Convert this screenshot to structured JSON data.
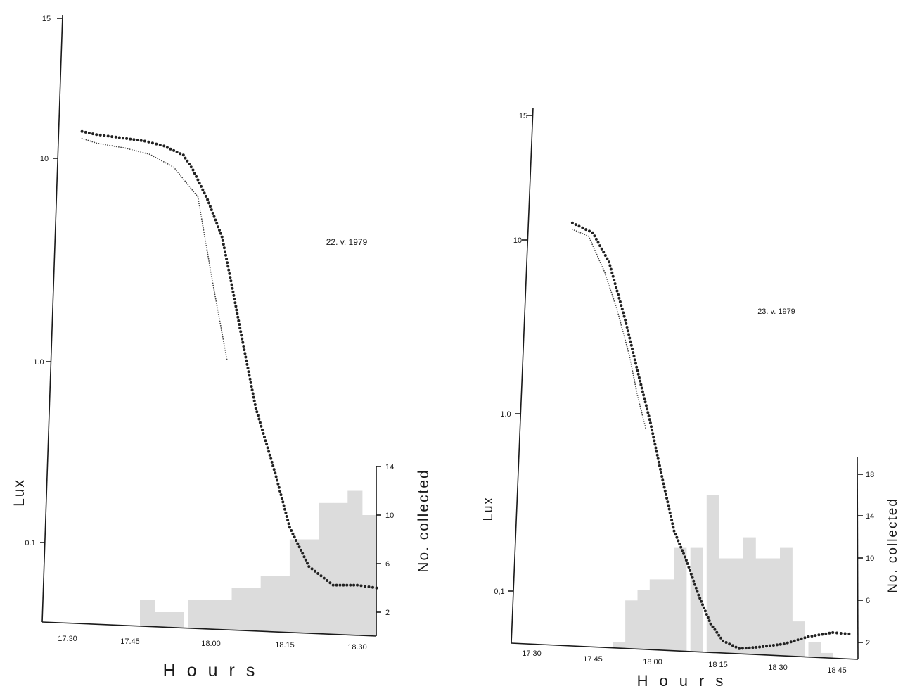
{
  "chart_data": [
    {
      "type": "line",
      "annotation": "22. v. 1979",
      "xlabel": "Hours",
      "ylabel": "Lux",
      "y2label": "No. collected",
      "x_ticks": [
        "17.30",
        "17.45",
        "18.00",
        "18.15",
        "18.30"
      ],
      "y_ticks": [
        "15",
        "10",
        "1.0",
        "0.1"
      ],
      "y2_ticks": [
        "2",
        "6",
        "10",
        "14"
      ],
      "y_scale": "log",
      "xlim": [
        "17:30",
        "18:35"
      ],
      "y2lim": [
        0,
        14
      ],
      "series": [
        {
          "style": "thick-dotted",
          "x": [
            "17:33",
            "17:36",
            "17:40",
            "17:43",
            "17:46",
            "17:50",
            "17:54",
            "17:56",
            "17:59",
            "18:02",
            "18:04",
            "18:06",
            "18:09",
            "18:13",
            "18:16",
            "18:20",
            "18:25",
            "18:30",
            "18:34"
          ],
          "y": [
            13.8,
            13.3,
            12.9,
            12.6,
            12.3,
            11.6,
            10.4,
            8.7,
            6.1,
            3.9,
            2.2,
            1.2,
            0.5,
            0.23,
            0.12,
            0.075,
            0.06,
            0.06,
            0.058
          ]
        },
        {
          "style": "thin-dotted",
          "x": [
            "17:33",
            "17:36",
            "17:42",
            "17:47",
            "17:52",
            "17:57",
            "18:00",
            "18:03"
          ],
          "y": [
            12.7,
            12.0,
            11.3,
            10.5,
            9.0,
            6.3,
            2.3,
            0.9
          ]
        }
      ],
      "bars": {
        "bin_start": [
          "17:45",
          "17:48",
          "17:51",
          "17:55",
          "17:58",
          "18:01",
          "18:04",
          "18:07",
          "18:10",
          "18:13",
          "18:16",
          "18:19",
          "18:22",
          "18:25",
          "18:28",
          "18:31"
        ],
        "counts": [
          3,
          2,
          2,
          3,
          3,
          3,
          4,
          4,
          5,
          5,
          8,
          8,
          11,
          11,
          12,
          10
        ]
      }
    },
    {
      "type": "line",
      "annotation": "23. v. 1979",
      "xlabel": "Hours",
      "ylabel": "Lux",
      "y2label": "No. collected",
      "x_ticks": [
        "17 30",
        "17 45",
        "18 00",
        "18 15",
        "18 30",
        "18 45"
      ],
      "y_ticks": [
        "15",
        "10",
        "1.0",
        "0,1"
      ],
      "y2_ticks": [
        "2",
        "6",
        "10",
        "14",
        "18"
      ],
      "y_scale": "log",
      "xlim": [
        "17:28",
        "18:50"
      ],
      "y2lim": [
        0,
        19
      ],
      "series": [
        {
          "style": "thick-dotted",
          "x": [
            "17:40",
            "17:45",
            "17:49",
            "17:53",
            "17:56",
            "17:59",
            "18:02",
            "18:05",
            "18:08",
            "18:11",
            "18:14",
            "18:17",
            "18:21",
            "18:26",
            "18:32",
            "18:38",
            "18:44",
            "18:48"
          ],
          "y": [
            12.5,
            11.0,
            7.5,
            3.5,
            1.8,
            0.95,
            0.45,
            0.22,
            0.15,
            0.095,
            0.065,
            0.052,
            0.047,
            0.048,
            0.05,
            0.055,
            0.058,
            0.057
          ]
        },
        {
          "style": "thin-dotted",
          "x": [
            "17:40",
            "17:44",
            "17:48",
            "17:51",
            "17:54",
            "17:56",
            "17:58"
          ],
          "y": [
            11.5,
            10.5,
            6.5,
            4.0,
            2.2,
            1.3,
            0.85
          ]
        }
      ],
      "bars": {
        "bin_start": [
          "17:50",
          "17:53",
          "17:56",
          "17:59",
          "18:02",
          "18:05",
          "18:09",
          "18:13",
          "18:16",
          "18:19",
          "18:22",
          "18:25",
          "18:28",
          "18:31",
          "18:34",
          "18:38",
          "18:41"
        ],
        "counts": [
          2,
          6,
          7,
          8,
          8,
          11,
          11,
          16,
          10,
          10,
          12,
          10,
          10,
          11,
          4,
          2,
          1
        ]
      }
    }
  ]
}
